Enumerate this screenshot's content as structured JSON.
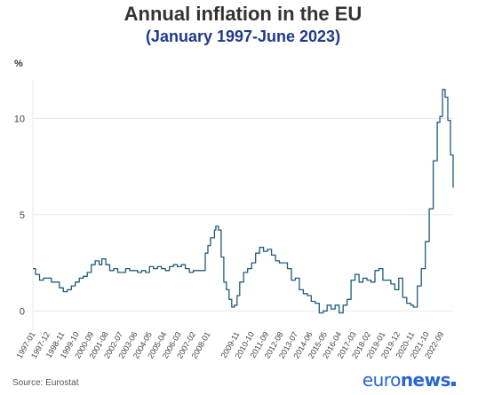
{
  "title": "Annual inflation in the EU",
  "subtitle": "(January 1997-June 2023)",
  "source": "Source: Eurostat",
  "logo": {
    "part1": "euro",
    "part2": "news"
  },
  "colors": {
    "line": "#1f5b7a",
    "title": "#333333",
    "subtitle": "#1f3a8a",
    "grid": "#e8e8e8",
    "logo": "#2a64d6"
  },
  "chart_data": {
    "type": "line",
    "title": "Annual inflation in the EU",
    "subtitle": "(January 1997-June 2023)",
    "ylabel": "%",
    "ylim": [
      -1,
      12
    ],
    "yticks": [
      0,
      5,
      10
    ],
    "grid": true,
    "x_tick_labels": [
      "1997-01",
      "1997-12",
      "1998-11",
      "1999-10",
      "2000-09",
      "2001-08",
      "2002-07",
      "2003-06",
      "2004-05",
      "2005-04",
      "2006-03",
      "2007-02",
      "2008-01",
      "2009-11",
      "2010-10",
      "2011-09",
      "2012-08",
      "2013-07",
      "2014-06",
      "2015-05",
      "2016-04",
      "2017-03",
      "2018-02",
      "2019-01",
      "2019-12",
      "2020-11",
      "2021-10",
      "2022-09"
    ],
    "series": [
      {
        "x": [
          "1997-01",
          "1997-03",
          "1997-06",
          "1997-09",
          "1997-12",
          "1998-03",
          "1998-06",
          "1998-09",
          "1998-12",
          "1999-03",
          "1999-06",
          "1999-09",
          "1999-12",
          "2000-03",
          "2000-06",
          "2000-09",
          "2000-12",
          "2001-03",
          "2001-05",
          "2001-08",
          "2001-11",
          "2002-02",
          "2002-05",
          "2002-08",
          "2002-11",
          "2003-02",
          "2003-05",
          "2003-08",
          "2003-11",
          "2004-02",
          "2004-05",
          "2004-08",
          "2004-11",
          "2005-02",
          "2005-05",
          "2005-08",
          "2005-11",
          "2006-02",
          "2006-05",
          "2006-08",
          "2006-11",
          "2007-02",
          "2007-05",
          "2007-08",
          "2007-11",
          "2008-01",
          "2008-03",
          "2008-06",
          "2008-07",
          "2008-09",
          "2008-11",
          "2009-01",
          "2009-03",
          "2009-05",
          "2009-07",
          "2009-09",
          "2009-11",
          "2010-01",
          "2010-04",
          "2010-07",
          "2010-10",
          "2011-01",
          "2011-04",
          "2011-07",
          "2011-10",
          "2012-01",
          "2012-04",
          "2012-07",
          "2012-10",
          "2013-01",
          "2013-04",
          "2013-07",
          "2013-10",
          "2014-01",
          "2014-04",
          "2014-07",
          "2014-10",
          "2015-01",
          "2015-04",
          "2015-07",
          "2015-10",
          "2016-01",
          "2016-04",
          "2016-07",
          "2016-10",
          "2017-01",
          "2017-04",
          "2017-07",
          "2017-10",
          "2018-01",
          "2018-04",
          "2018-07",
          "2018-10",
          "2019-01",
          "2019-04",
          "2019-07",
          "2019-10",
          "2020-01",
          "2020-04",
          "2020-07",
          "2020-10",
          "2020-12",
          "2021-03",
          "2021-06",
          "2021-09",
          "2021-12",
          "2022-03",
          "2022-06",
          "2022-08",
          "2022-10",
          "2022-12",
          "2023-02",
          "2023-04",
          "2023-06"
        ],
        "y": [
          2.2,
          1.9,
          1.6,
          1.7,
          1.7,
          1.5,
          1.5,
          1.2,
          1.0,
          1.1,
          1.3,
          1.5,
          1.7,
          1.8,
          2.0,
          2.4,
          2.6,
          2.4,
          2.7,
          2.4,
          2.1,
          2.2,
          2.0,
          2.0,
          2.2,
          2.1,
          2.1,
          2.0,
          2.1,
          2.0,
          2.3,
          2.2,
          2.3,
          2.2,
          2.1,
          2.3,
          2.4,
          2.3,
          2.4,
          2.2,
          2.0,
          2.1,
          2.1,
          2.1,
          3.0,
          3.4,
          3.8,
          4.2,
          4.4,
          4.2,
          2.8,
          1.5,
          1.1,
          0.6,
          0.2,
          0.3,
          0.8,
          1.5,
          2.0,
          2.2,
          2.5,
          3.0,
          3.3,
          3.1,
          3.2,
          2.9,
          2.6,
          2.5,
          2.5,
          2.2,
          1.6,
          1.7,
          1.1,
          0.9,
          0.8,
          0.5,
          0.4,
          -0.1,
          0.0,
          0.3,
          0.1,
          0.3,
          -0.1,
          0.3,
          0.6,
          1.6,
          1.9,
          1.5,
          1.7,
          1.6,
          1.5,
          2.1,
          2.2,
          1.6,
          1.6,
          1.4,
          1.1,
          1.7,
          0.7,
          0.4,
          0.3,
          0.2,
          1.3,
          2.2,
          3.6,
          5.3,
          7.8,
          9.8,
          10.1,
          11.5,
          11.1,
          9.9,
          8.1,
          6.4
        ]
      }
    ]
  }
}
